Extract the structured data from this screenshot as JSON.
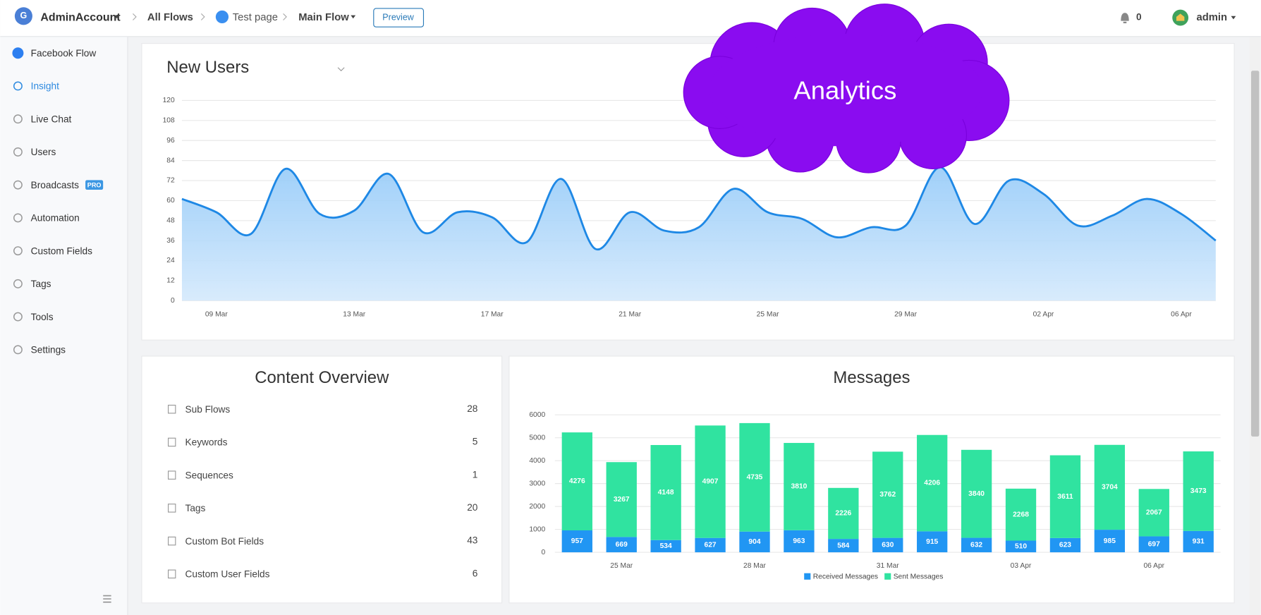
{
  "header": {
    "account": "AdminAccount",
    "breadcrumbs": [
      "All Flows",
      "Test page",
      "Main Flow"
    ],
    "button": "Preview",
    "notifications": "0",
    "user": "admin"
  },
  "sidebar": {
    "items": [
      "Facebook Flow",
      "Insight",
      "Live Chat",
      "Users",
      "Broadcasts",
      "Automation",
      "Custom Fields",
      "Tags",
      "Tools",
      "Settings"
    ],
    "badge": "PRO"
  },
  "annotation": "Analytics",
  "content_overview": {
    "title": "Content Overview",
    "rows": [
      {
        "label": "Sub Flows",
        "value": "28"
      },
      {
        "label": "Keywords",
        "value": "5"
      },
      {
        "label": "Sequences",
        "value": "1"
      },
      {
        "label": "Tags",
        "value": "20"
      },
      {
        "label": "Custom Bot Fields",
        "value": "43"
      },
      {
        "label": "Custom User Fields",
        "value": "6"
      }
    ]
  },
  "chart_data": [
    {
      "type": "line",
      "title": "New Users",
      "color": "#1e88e5",
      "categories": [
        null,
        "09 Mar",
        null,
        null,
        null,
        "13 Mar",
        null,
        null,
        null,
        "17 Mar",
        null,
        null,
        null,
        "21 Mar",
        null,
        null,
        null,
        "25 Mar",
        null,
        null,
        null,
        "29 Mar",
        null,
        null,
        null,
        "02 Apr",
        null,
        null,
        null,
        "06 Apr",
        null
      ],
      "values": [
        61,
        53,
        40,
        79,
        52,
        54,
        76,
        41,
        53,
        50,
        35,
        73,
        31,
        53,
        42,
        44,
        67,
        53,
        49,
        38,
        44,
        45,
        80,
        46,
        72,
        64,
        45,
        51,
        61,
        52,
        36
      ],
      "ylim": [
        0,
        120
      ],
      "yticks": [
        0,
        12,
        24,
        36,
        48,
        60,
        72,
        84,
        96,
        108,
        120
      ],
      "grid": true
    },
    {
      "type": "bar",
      "stacked": true,
      "title": "Messages",
      "legend": "bottom",
      "categories": [
        null,
        "25 Mar",
        null,
        null,
        "28 Mar",
        null,
        null,
        "31 Mar",
        null,
        null,
        "03 Apr",
        null,
        null,
        "06 Apr",
        null
      ],
      "series": [
        {
          "name": "Received Messages",
          "color": "#2196f3",
          "values": [
            957,
            669,
            534,
            627,
            904,
            963,
            584,
            630,
            915,
            632,
            510,
            623,
            985,
            697,
            931
          ]
        },
        {
          "name": "Sent Messages",
          "color": "#30e3a0",
          "values": [
            4276,
            3267,
            4148,
            4907,
            4735,
            3810,
            2226,
            3762,
            4206,
            3840,
            2268,
            3611,
            3704,
            2067,
            3473
          ]
        }
      ],
      "ylim": [
        0,
        6000
      ],
      "yticks": [
        0,
        1000,
        2000,
        3000,
        4000,
        5000,
        6000
      ],
      "grid": true
    }
  ]
}
